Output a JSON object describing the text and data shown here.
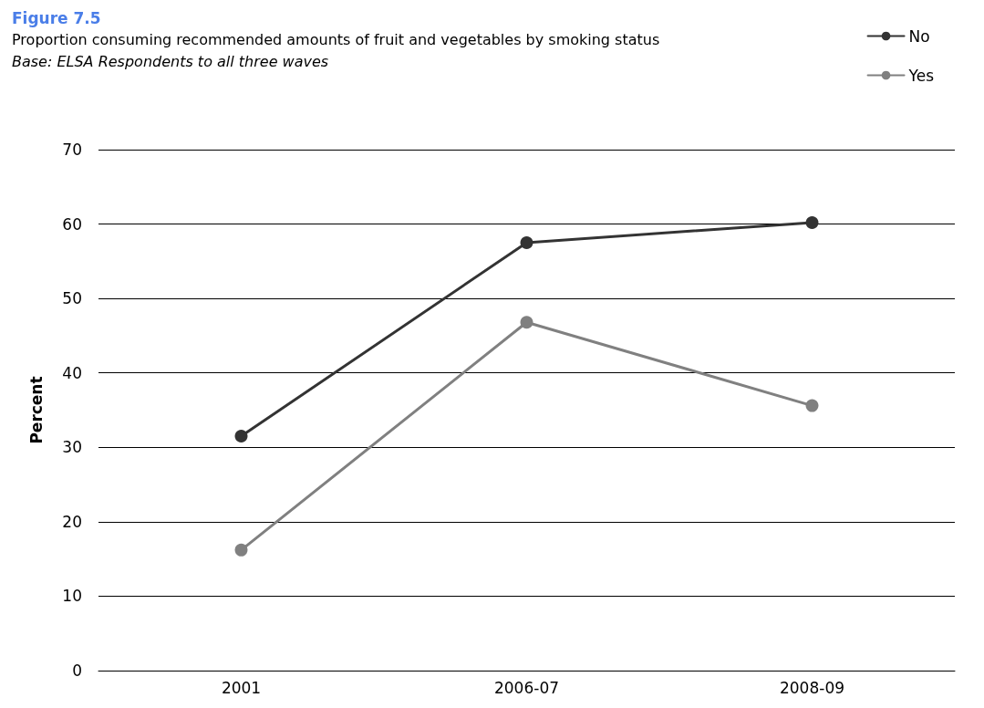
{
  "chart_data": {
    "type": "line",
    "title": "Figure 7.5",
    "subtitle": "Proportion consuming recommended amounts of fruit and vegetables by smoking status",
    "annotations": [
      "Base: ELSA Respondents to all three waves"
    ],
    "ylabel": "Percent",
    "categories": [
      "2001",
      "2006-07",
      "2008-09"
    ],
    "series": [
      {
        "name": "No",
        "color": "#333333",
        "values": [
          31.5,
          57.5,
          60.2
        ]
      },
      {
        "name": "Yes",
        "color": "#808080",
        "values": [
          16.2,
          46.8,
          35.6
        ]
      }
    ],
    "ylim": [
      0,
      70
    ],
    "yticks": [
      0,
      10,
      20,
      30,
      40,
      50,
      60,
      70
    ],
    "grid": "y",
    "legend": "top right",
    "marker": "circle",
    "line_style": "solid"
  }
}
